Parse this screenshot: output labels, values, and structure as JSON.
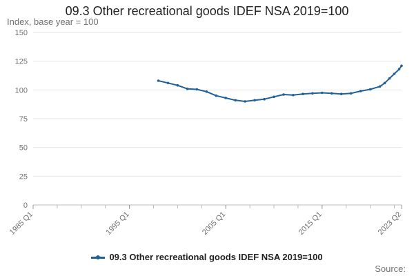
{
  "chart_data": {
    "type": "line",
    "title": "09.3 Other recreational goods IDEF NSA 2019=100",
    "ylabel": "Index, base year = 100",
    "xlabel": "",
    "ylim": [
      0,
      150
    ],
    "yticks": [
      0,
      25,
      50,
      75,
      100,
      125,
      150
    ],
    "xticks": [
      "1985 Q1",
      "1995 Q1",
      "2005 Q1",
      "2015 Q1",
      "2023 Q2"
    ],
    "grid": true,
    "legend_position": "bottom",
    "source_label": "Source:",
    "series": [
      {
        "name": "09.3 Other recreational goods IDEF NSA 2019=100",
        "color": "#206095",
        "x": [
          "1998 Q1",
          "1999 Q1",
          "2000 Q1",
          "2001 Q1",
          "2002 Q1",
          "2003 Q1",
          "2004 Q1",
          "2005 Q1",
          "2006 Q1",
          "2007 Q1",
          "2008 Q1",
          "2009 Q1",
          "2010 Q1",
          "2011 Q1",
          "2012 Q1",
          "2013 Q1",
          "2014 Q1",
          "2015 Q1",
          "2016 Q1",
          "2017 Q1",
          "2018 Q1",
          "2019 Q1",
          "2020 Q1",
          "2021 Q1",
          "2021 Q3",
          "2022 Q1",
          "2022 Q3",
          "2023 Q1",
          "2023 Q2"
        ],
        "values": [
          108,
          106,
          104,
          101,
          100.5,
          98.5,
          95,
          93,
          91,
          90,
          91,
          92,
          94,
          96,
          95.5,
          96.5,
          97,
          97.5,
          97,
          96.5,
          97,
          99,
          100.5,
          103,
          106,
          110,
          114,
          118,
          121
        ]
      }
    ]
  }
}
